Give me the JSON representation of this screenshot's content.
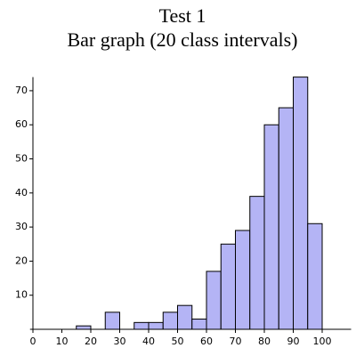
{
  "chart_data": {
    "type": "histogram",
    "title": "Test 1",
    "subtitle": "Bar graph (20 class intervals)",
    "bins": [
      0,
      5,
      10,
      15,
      20,
      25,
      30,
      35,
      40,
      45,
      50,
      55,
      60,
      65,
      70,
      75,
      80,
      85,
      90,
      95,
      100
    ],
    "values": [
      0,
      0,
      0,
      1,
      0,
      5,
      0,
      2,
      2,
      5,
      7,
      3,
      17,
      25,
      29,
      39,
      60,
      65,
      74,
      31
    ],
    "color": "#b4b4f5",
    "xlim": [
      -1,
      110
    ],
    "xticks": [
      0,
      10,
      20,
      30,
      40,
      50,
      60,
      70,
      80,
      90,
      100
    ],
    "ylim": [
      0,
      74
    ],
    "yticks": [
      10,
      20,
      30,
      40,
      50,
      60,
      70
    ]
  }
}
